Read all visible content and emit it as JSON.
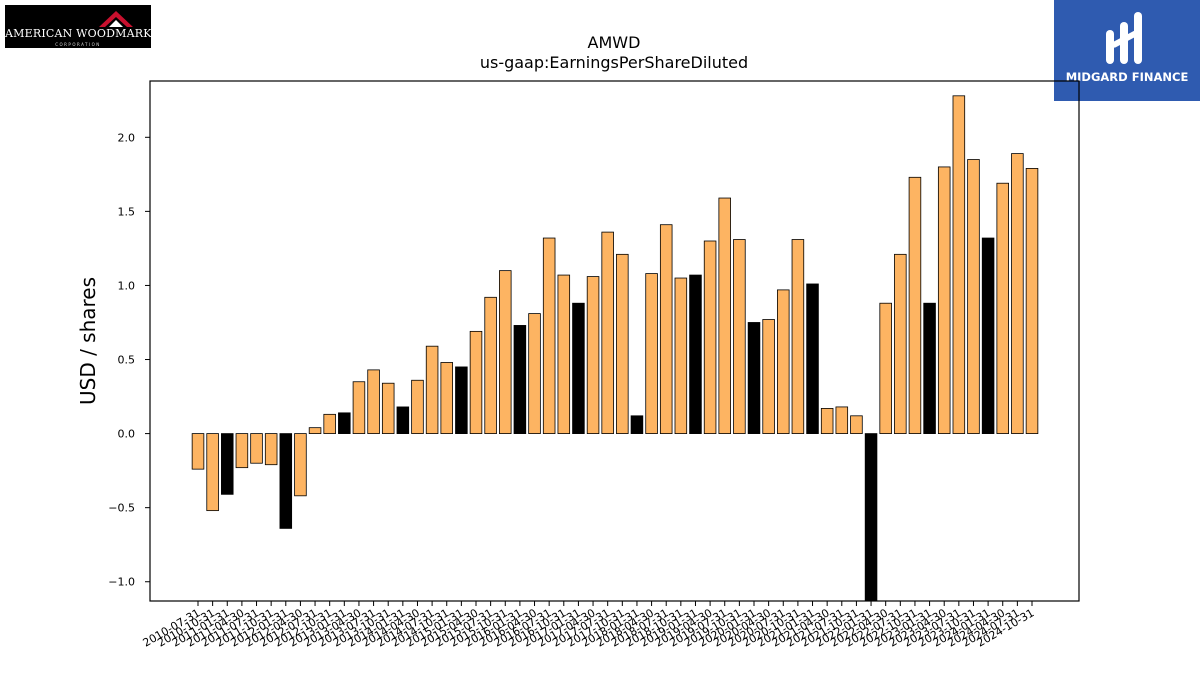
{
  "logos": {
    "left": {
      "text": "AMERICAN WOODMARK",
      "subtext": "CORPORATION",
      "accent": "#c8102e"
    },
    "right": {
      "text": "MIDGARD FINANCE",
      "background": "#2f5bb0"
    }
  },
  "chart_data": {
    "type": "bar",
    "title": "AMWD",
    "subtitle": "us-gaap:EarningsPerShareDiluted",
    "xlabel": "",
    "ylabel": "USD / shares",
    "ylim": [
      -1.13,
      2.38
    ],
    "yticks": [
      -1.0,
      -0.5,
      0.0,
      0.5,
      1.0,
      1.5,
      2.0
    ],
    "ytick_labels": [
      "−1.0",
      "−0.5",
      "0.0",
      "0.5",
      "1.0",
      "1.5",
      "2.0"
    ],
    "colors": {
      "quarter": "#fdb462",
      "annual": "#000000",
      "edge": "#000000"
    },
    "categories": [
      "2010-07-31",
      "2010-10-31",
      "2011-01-31",
      "2011-04-30",
      "2011-07-31",
      "2011-10-31",
      "2012-01-31",
      "2012-04-30",
      "2012-07-31",
      "2012-10-31",
      "2013-01-31",
      "2013-04-30",
      "2013-07-31",
      "2013-10-31",
      "2014-01-31",
      "2014-04-30",
      "2014-07-31",
      "2014-10-31",
      "2015-01-31",
      "2015-04-30",
      "2015-07-31",
      "2015-10-31",
      "2016-01-31",
      "2016-04-30",
      "2016-07-31",
      "2016-10-31",
      "2017-01-31",
      "2017-04-30",
      "2017-07-31",
      "2017-10-31",
      "2018-01-31",
      "2018-04-30",
      "2018-07-31",
      "2018-10-31",
      "2019-01-31",
      "2019-04-30",
      "2019-07-31",
      "2019-10-31",
      "2020-01-31",
      "2020-04-30",
      "2020-07-31",
      "2020-10-31",
      "2021-01-31",
      "2021-04-30",
      "2021-07-31",
      "2021-10-31",
      "2022-01-31",
      "2022-04-30",
      "2022-07-31",
      "2022-10-31",
      "2023-01-31",
      "2023-04-30",
      "2023-07-31",
      "2023-10-31",
      "2024-01-31",
      "2024-04-30",
      "2024-07-31",
      "2024-10-31"
    ],
    "values": [
      -0.24,
      -0.52,
      -0.41,
      -0.23,
      -0.2,
      -0.21,
      -0.64,
      -0.42,
      0.04,
      0.13,
      0.14,
      0.35,
      0.43,
      0.34,
      0.18,
      0.36,
      0.59,
      0.48,
      0.45,
      0.69,
      0.92,
      1.1,
      0.73,
      0.81,
      1.32,
      1.07,
      0.88,
      1.06,
      1.36,
      1.21,
      0.12,
      1.08,
      1.41,
      1.05,
      1.07,
      1.3,
      1.59,
      1.31,
      0.75,
      0.77,
      0.97,
      1.31,
      1.01,
      0.17,
      0.18,
      0.12,
      -1.15,
      0.88,
      1.21,
      1.73,
      0.88,
      1.8,
      2.28,
      1.85,
      1.32,
      1.69,
      1.89,
      1.79
    ],
    "is_annual": [
      false,
      false,
      true,
      false,
      false,
      false,
      true,
      false,
      false,
      false,
      true,
      false,
      false,
      false,
      true,
      false,
      false,
      false,
      true,
      false,
      false,
      false,
      true,
      false,
      false,
      false,
      true,
      false,
      false,
      false,
      true,
      false,
      false,
      false,
      true,
      false,
      false,
      false,
      true,
      false,
      false,
      false,
      true,
      false,
      false,
      false,
      true,
      false,
      false,
      false,
      true,
      false,
      false,
      false,
      true,
      false,
      false,
      false
    ],
    "grid": false,
    "legend": "none"
  }
}
